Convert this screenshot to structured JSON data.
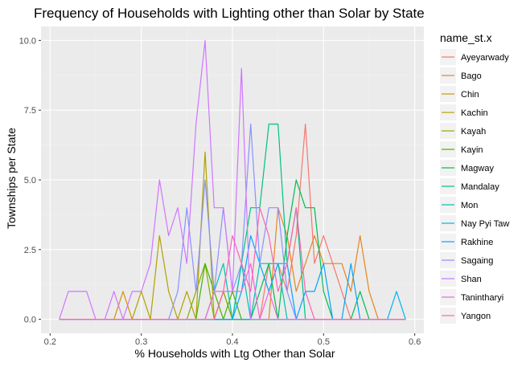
{
  "chart_data": {
    "type": "line",
    "title": "Frequency of Households with Lighting other than Solar by State",
    "xlabel": "% Households with Ltg Other than Solar",
    "ylabel": "Townships per State",
    "xlim": [
      0.19,
      0.61
    ],
    "ylim": [
      -0.5,
      10.5
    ],
    "x_ticks": [
      0.2,
      0.3,
      0.4,
      0.5,
      0.6
    ],
    "x_tick_labels": [
      "0.2",
      "0.3",
      "0.4",
      "0.5",
      "0.6"
    ],
    "y_ticks": [
      0,
      2.5,
      5,
      7.5,
      10
    ],
    "y_tick_labels": [
      "0.0",
      "2.5",
      "5.0",
      "7.5",
      "10.0"
    ],
    "grid": true,
    "legend": {
      "title": "name_st.x",
      "position": "right"
    },
    "background": "#ebebeb",
    "series": [
      {
        "name": "Ayeyarwady",
        "color": "#F8766D",
        "x": [
          0.21,
          0.43,
          0.44,
          0.45,
          0.46,
          0.47,
          0.48,
          0.49,
          0.5,
          0.51,
          0.52,
          0.53,
          0.55,
          0.59
        ],
        "y": [
          0,
          0,
          2,
          2,
          1,
          3,
          7,
          2,
          3,
          2,
          1,
          0,
          0,
          0
        ]
      },
      {
        "name": "Bago",
        "color": "#E7851E",
        "x": [
          0.21,
          0.44,
          0.45,
          0.46,
          0.47,
          0.48,
          0.49,
          0.5,
          0.51,
          0.52,
          0.53,
          0.54,
          0.55,
          0.56,
          0.59
        ],
        "y": [
          0,
          0,
          4,
          3,
          1,
          2,
          3,
          2,
          2,
          2,
          1,
          3,
          1,
          0,
          0
        ]
      },
      {
        "name": "Chin",
        "color": "#D09400",
        "x": [
          0.21,
          0.27,
          0.28,
          0.29,
          0.3,
          0.31,
          0.32,
          0.33,
          0.59
        ],
        "y": [
          0,
          0,
          1,
          0,
          0,
          0,
          0,
          0,
          0
        ]
      },
      {
        "name": "Kachin",
        "color": "#B2A100",
        "x": [
          0.21,
          0.29,
          0.3,
          0.31,
          0.32,
          0.33,
          0.34,
          0.35,
          0.36,
          0.37,
          0.38,
          0.39,
          0.4,
          0.41,
          0.59
        ],
        "y": [
          0,
          0,
          1,
          0,
          3,
          1,
          0,
          1,
          0,
          6,
          0,
          1,
          0,
          0,
          0
        ]
      },
      {
        "name": "Kayah",
        "color": "#89AC00",
        "x": [
          0.21,
          0.35,
          0.36,
          0.37,
          0.38,
          0.39,
          0.4,
          0.41,
          0.59
        ],
        "y": [
          0,
          0,
          1,
          2,
          0,
          1,
          0,
          0,
          0
        ]
      },
      {
        "name": "Kayin",
        "color": "#45B500",
        "x": [
          0.21,
          0.36,
          0.37,
          0.38,
          0.39,
          0.4,
          0.41,
          0.42,
          0.59
        ],
        "y": [
          0,
          0,
          2,
          1,
          0,
          1,
          0,
          0,
          0
        ]
      },
      {
        "name": "Magway",
        "color": "#00BC51",
        "x": [
          0.21,
          0.42,
          0.43,
          0.44,
          0.45,
          0.46,
          0.47,
          0.48,
          0.49,
          0.5,
          0.51,
          0.52,
          0.53,
          0.54,
          0.55,
          0.59
        ],
        "y": [
          0,
          0,
          1,
          2,
          0,
          3,
          5,
          4,
          4,
          1,
          0,
          0,
          0,
          1,
          0,
          0
        ]
      },
      {
        "name": "Mandalay",
        "color": "#00C087",
        "x": [
          0.21,
          0.4,
          0.41,
          0.42,
          0.43,
          0.44,
          0.45,
          0.46,
          0.47,
          0.48,
          0.49,
          0.59
        ],
        "y": [
          0,
          0,
          2,
          4,
          4,
          7,
          7,
          2,
          4,
          0,
          0,
          0
        ]
      },
      {
        "name": "Mon",
        "color": "#00C0B2",
        "x": [
          0.21,
          0.37,
          0.38,
          0.39,
          0.4,
          0.41,
          0.42,
          0.43,
          0.44,
          0.45,
          0.46,
          0.59
        ],
        "y": [
          0,
          0,
          1,
          2,
          0,
          2,
          0,
          2,
          2,
          2,
          0,
          0
        ]
      },
      {
        "name": "Nay Pyi Taw",
        "color": "#00B4EF",
        "x": [
          0.21,
          0.55,
          0.56,
          0.57,
          0.58,
          0.59
        ],
        "y": [
          0,
          0,
          0,
          0,
          1,
          0
        ]
      },
      {
        "name": "Rakhine",
        "color": "#00A5FF",
        "x": [
          0.21,
          0.4,
          0.41,
          0.42,
          0.43,
          0.44,
          0.45,
          0.46,
          0.47,
          0.48,
          0.49,
          0.5,
          0.51,
          0.52,
          0.53,
          0.54,
          0.59
        ],
        "y": [
          0,
          0,
          1,
          3,
          2,
          1,
          2,
          2,
          0,
          1,
          1,
          2,
          0,
          0,
          2,
          0,
          0
        ]
      },
      {
        "name": "Sagaing",
        "color": "#8A91FF",
        "x": [
          0.21,
          0.33,
          0.34,
          0.35,
          0.36,
          0.37,
          0.38,
          0.39,
          0.4,
          0.41,
          0.42,
          0.43,
          0.44,
          0.45,
          0.46,
          0.47,
          0.59
        ],
        "y": [
          0,
          0,
          1,
          4,
          1,
          5,
          1,
          4,
          1,
          2,
          7,
          2,
          4,
          4,
          1,
          0,
          0
        ]
      },
      {
        "name": "Shan",
        "color": "#D175FF",
        "x": [
          0.21,
          0.22,
          0.23,
          0.24,
          0.25,
          0.26,
          0.27,
          0.28,
          0.29,
          0.3,
          0.31,
          0.32,
          0.33,
          0.34,
          0.35,
          0.36,
          0.37,
          0.38,
          0.39,
          0.4,
          0.41,
          0.42,
          0.59
        ],
        "y": [
          0,
          1,
          1,
          1,
          0,
          0,
          1,
          0,
          1,
          1,
          2,
          5,
          3,
          4,
          2,
          7,
          10,
          4,
          4,
          1,
          9,
          0,
          0
        ]
      },
      {
        "name": "Tanintharyi",
        "color": "#F664DE",
        "x": [
          0.21,
          0.37,
          0.38,
          0.39,
          0.4,
          0.41,
          0.42,
          0.43,
          0.44,
          0.45,
          0.59
        ],
        "y": [
          0,
          0,
          1,
          1,
          1,
          1,
          2,
          0,
          1,
          0,
          0
        ]
      },
      {
        "name": "Yangon",
        "color": "#FF62B0",
        "x": [
          0.21,
          0.38,
          0.39,
          0.4,
          0.41,
          0.42,
          0.43,
          0.44,
          0.45,
          0.46,
          0.47,
          0.48,
          0.49,
          0.5,
          0.51,
          0.59
        ],
        "y": [
          0,
          0,
          1,
          3,
          2,
          1,
          4,
          3,
          1,
          2,
          4,
          1,
          0,
          0,
          0,
          0
        ]
      }
    ]
  }
}
